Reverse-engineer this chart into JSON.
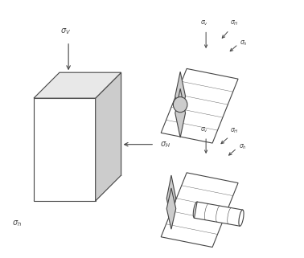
{
  "bg_color": "#ffffff",
  "line_color": "#444444",
  "gray_fill": "#aaaaaa",
  "light_gray": "#cccccc",
  "very_light_gray": "#e8e8e8",
  "fig_width": 3.78,
  "fig_height": 3.21,
  "dpi": 100
}
